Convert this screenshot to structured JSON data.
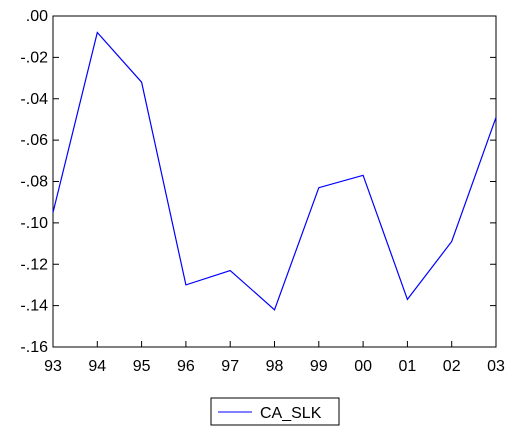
{
  "chart_data": {
    "type": "line",
    "title": "",
    "xlabel": "",
    "ylabel": "",
    "categories": [
      "93",
      "94",
      "95",
      "96",
      "97",
      "98",
      "99",
      "00",
      "01",
      "02",
      "03"
    ],
    "series": [
      {
        "name": "CA_SLK",
        "color": "#0000ff",
        "values": [
          -0.095,
          -0.008,
          -0.032,
          -0.13,
          -0.123,
          -0.142,
          -0.083,
          -0.077,
          -0.137,
          -0.109,
          -0.049
        ]
      }
    ],
    "ylim": [
      -0.16,
      0.0
    ],
    "yticks": [
      {
        "value": 0.0,
        "label": ".00"
      },
      {
        "value": -0.02,
        "label": "-.02"
      },
      {
        "value": -0.04,
        "label": "-.04"
      },
      {
        "value": -0.06,
        "label": "-.06"
      },
      {
        "value": -0.08,
        "label": "-.08"
      },
      {
        "value": -0.1,
        "label": "-.10"
      },
      {
        "value": -0.12,
        "label": "-.12"
      },
      {
        "value": -0.14,
        "label": "-.14"
      },
      {
        "value": -0.16,
        "label": "-.16"
      }
    ],
    "grid": false,
    "legend_position": "bottom-center",
    "axis_color": "#000000"
  }
}
